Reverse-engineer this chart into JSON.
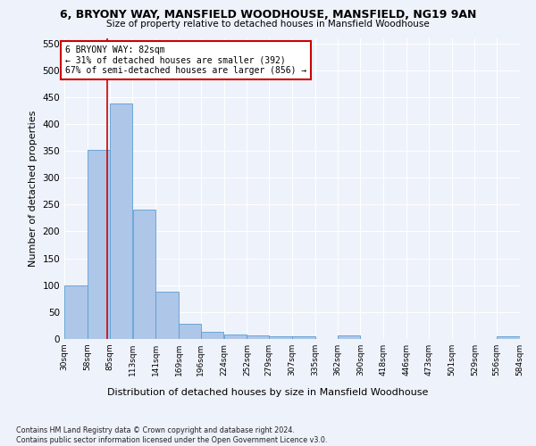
{
  "title1": "6, BRYONY WAY, MANSFIELD WOODHOUSE, MANSFIELD, NG19 9AN",
  "title2": "Size of property relative to detached houses in Mansfield Woodhouse",
  "xlabel": "Distribution of detached houses by size in Mansfield Woodhouse",
  "ylabel": "Number of detached properties",
  "footnote": "Contains HM Land Registry data © Crown copyright and database right 2024.\nContains public sector information licensed under the Open Government Licence v3.0.",
  "annotation_line1": "6 BRYONY WAY: 82sqm",
  "annotation_line2": "← 31% of detached houses are smaller (392)",
  "annotation_line3": "67% of semi-detached houses are larger (856) →",
  "property_size": 82,
  "bin_edges": [
    30,
    58,
    85,
    113,
    141,
    169,
    196,
    224,
    252,
    279,
    307,
    335,
    362,
    390,
    418,
    446,
    473,
    501,
    529,
    556,
    584
  ],
  "bar_values": [
    100,
    352,
    438,
    240,
    88,
    28,
    14,
    9,
    6,
    5,
    5,
    0,
    6,
    0,
    0,
    0,
    0,
    0,
    0,
    5
  ],
  "bar_color": "#aec6e8",
  "bar_edge_color": "#5a9fd4",
  "vline_color": "#cc0000",
  "annotation_box_edge": "#cc0000",
  "background_color": "#eef2fb",
  "ylim": [
    0,
    560
  ],
  "yticks": [
    0,
    50,
    100,
    150,
    200,
    250,
    300,
    350,
    400,
    450,
    500,
    550
  ]
}
